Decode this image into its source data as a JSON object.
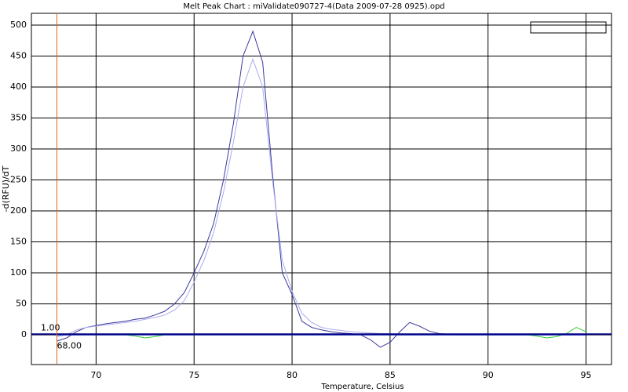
{
  "chart_data": {
    "type": "line",
    "title": "Melt Peak Chart : miValidate090727-4(Data 2009-07-28 0925).opd",
    "x_label": "Temperature, Celsius",
    "y_label": "-d(RFU)/dT",
    "xlim": [
      66.7,
      96.3
    ],
    "ylim": [
      -48,
      519
    ],
    "xticks": [
      70,
      75,
      80,
      85,
      90,
      95
    ],
    "yticks": [
      0,
      50,
      100,
      150,
      200,
      250,
      300,
      350,
      400,
      450,
      500
    ],
    "grid": true,
    "threshold": {
      "value": 1,
      "label": "1.00"
    },
    "marker": {
      "value": 68,
      "label": "68.00"
    },
    "x": [
      68,
      68.5,
      69,
      69.5,
      70,
      70.5,
      71,
      71.5,
      72,
      72.5,
      73,
      73.5,
      74,
      74.5,
      75,
      75.5,
      76,
      76.5,
      77,
      77.5,
      78,
      78.5,
      79,
      79.5,
      80,
      80.5,
      81,
      81.5,
      82,
      82.5,
      83,
      83.5,
      84,
      84.5,
      85,
      85.5,
      86,
      86.5,
      87,
      87.5,
      88,
      88.5,
      89,
      89.5,
      90,
      90.5,
      91,
      91.5,
      92,
      92.5,
      93,
      93.5,
      94,
      94.5,
      95
    ],
    "series": [
      {
        "color": "#3a3a9e",
        "values": [
          -10,
          -5,
          5,
          12,
          15,
          18,
          20,
          22,
          25,
          27,
          32,
          38,
          50,
          68,
          100,
          135,
          180,
          250,
          340,
          450,
          490,
          440,
          260,
          100,
          65,
          22,
          12,
          8,
          5,
          3,
          2,
          0,
          -8,
          -20,
          -12,
          5,
          20,
          14,
          6,
          2,
          1,
          0,
          0,
          0,
          0,
          0,
          0,
          0,
          0,
          0,
          0,
          0,
          0,
          0,
          0
        ]
      },
      {
        "color": "#aaaaee",
        "values": [
          -3,
          0,
          8,
          12,
          14,
          16,
          18,
          20,
          22,
          25,
          28,
          32,
          40,
          55,
          85,
          120,
          165,
          230,
          310,
          400,
          445,
          400,
          250,
          120,
          70,
          35,
          20,
          12,
          9,
          7,
          5,
          4,
          3,
          2,
          2,
          1,
          1,
          1,
          0,
          0,
          0,
          0,
          0,
          0,
          0,
          0,
          0,
          0,
          0,
          0,
          0,
          0,
          0,
          0,
          0
        ]
      },
      {
        "color": "#33cc33",
        "values": [
          0,
          0,
          0,
          0,
          0,
          0,
          0,
          0,
          -2,
          -5,
          -3,
          0,
          0,
          0,
          0,
          0,
          0,
          0,
          0,
          0,
          0,
          0,
          0,
          0,
          0,
          0,
          0,
          0,
          0,
          0,
          0,
          0,
          0,
          0,
          0,
          0,
          0,
          0,
          0,
          0,
          0,
          0,
          0,
          0,
          0,
          0,
          0,
          0,
          0,
          -2,
          -5,
          -3,
          2,
          12,
          5
        ]
      },
      {
        "color": "#0000ff",
        "values": [
          0,
          0,
          0,
          0,
          0,
          0,
          0,
          0,
          0,
          0,
          0,
          0,
          0,
          0,
          0,
          0,
          0,
          0,
          0,
          0,
          0,
          0,
          0,
          0,
          0,
          0,
          0,
          0,
          0,
          0,
          0,
          0,
          0,
          0,
          0,
          0,
          0,
          0,
          0,
          0,
          0,
          0,
          0,
          0,
          0,
          0,
          0,
          0,
          0,
          0,
          0,
          0,
          0,
          0,
          0
        ]
      }
    ]
  }
}
